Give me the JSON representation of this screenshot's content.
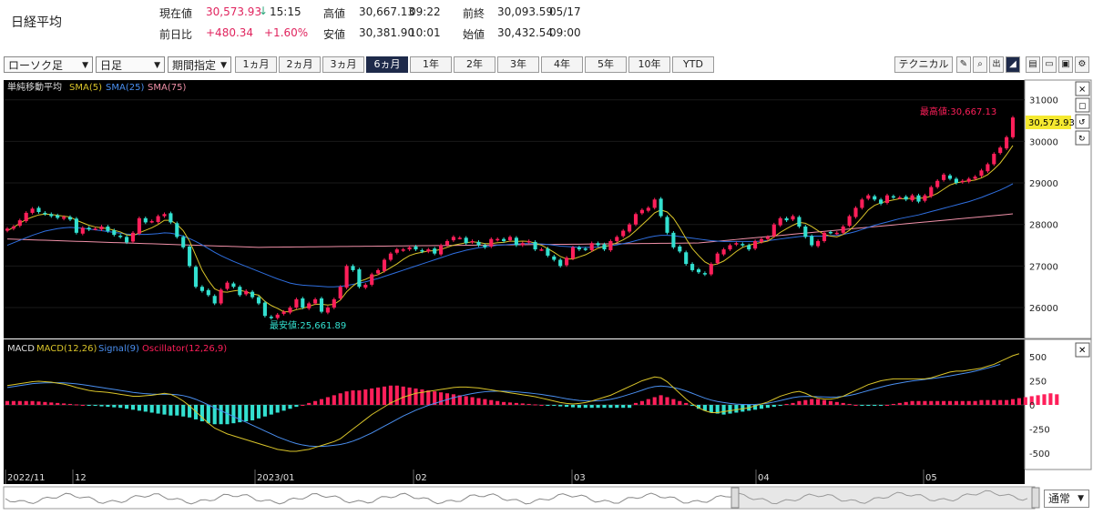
{
  "quote": {
    "name": "日経平均",
    "current_label": "現在値",
    "current_value": "30,573.93",
    "current_arrow": "↓",
    "current_time": "15:15",
    "high_label": "高値",
    "high_value": "30,667.13",
    "high_time": "09:22",
    "prevclose_label": "前終",
    "prevclose_value": "30,093.59",
    "prevclose_date": "05/17",
    "change_label": "前日比",
    "change_value": "+480.34",
    "change_pct": "+1.60%",
    "low_label": "安値",
    "low_value": "30,381.90",
    "low_time": "10:01",
    "open_label": "始値",
    "open_value": "30,432.54",
    "open_time": "09:00"
  },
  "toolbar": {
    "chart_type": "ローソク足",
    "interval": "日足",
    "period_mode": "期間指定",
    "ranges": [
      "1ヵ月",
      "2ヵ月",
      "3ヵ月",
      "6ヵ月",
      "1年",
      "2年",
      "3年",
      "4年",
      "5年",
      "10年",
      "YTD"
    ],
    "active_range": "6ヵ月",
    "technical_label": "テクニカル"
  },
  "colors": {
    "up": "#ff1f5a",
    "down": "#33e0d0",
    "sma5": "#d9c42a",
    "sma25": "#2f6fe0",
    "sma75": "#f090a8",
    "macd": "#d9c42a",
    "signal": "#4a8ff0",
    "osc_pos": "#ff1f5a",
    "osc_neg": "#33e0d0",
    "background": "#000000"
  },
  "chart_data": {
    "type": "candlestick",
    "x_ticks": [
      "2022/11",
      "12",
      "2023/01",
      "02",
      "03",
      "04",
      "05"
    ],
    "price_panel": {
      "legend": [
        "単純移動平均",
        "SMA(5)",
        "SMA(25)",
        "SMA(75)"
      ],
      "ylim": [
        25300,
        31300
      ],
      "y_ticks": [
        26000,
        27000,
        28000,
        29000,
        30000,
        31000
      ],
      "last_price_label": "30,573.93",
      "high_annotation": "最高値:30,667.13",
      "low_annotation": "最安値:25,661.89",
      "close": [
        27900,
        27950,
        28100,
        28280,
        28380,
        28300,
        28250,
        28200,
        28160,
        28180,
        28120,
        27800,
        27920,
        27880,
        27900,
        27950,
        27840,
        27750,
        27700,
        27570,
        27800,
        28150,
        28050,
        28080,
        28200,
        28250,
        28050,
        27700,
        27450,
        27000,
        26500,
        26400,
        26300,
        26100,
        26430,
        26600,
        26500,
        26300,
        26400,
        26250,
        26100,
        25800,
        25750,
        25830,
        25900,
        26000,
        26200,
        26000,
        26100,
        26200,
        25900,
        26000,
        26200,
        26500,
        27000,
        26900,
        26500,
        26550,
        26800,
        26900,
        27150,
        27300,
        27400,
        27400,
        27450,
        27400,
        27350,
        27400,
        27300,
        27500,
        27600,
        27700,
        27680,
        27550,
        27600,
        27500,
        27450,
        27650,
        27650,
        27600,
        27700,
        27500,
        27550,
        27600,
        27400,
        27400,
        27250,
        27150,
        27000,
        27200,
        27450,
        27400,
        27400,
        27550,
        27500,
        27400,
        27600,
        27700,
        27850,
        28000,
        28250,
        28350,
        28400,
        28600,
        28200,
        27800,
        27450,
        27350,
        27050,
        26900,
        26850,
        26800,
        27050,
        27300,
        27400,
        27500,
        27550,
        27500,
        27400,
        27600,
        27650,
        27700,
        28000,
        28150,
        28100,
        28200,
        27950,
        27700,
        27500,
        27600,
        27800,
        27800,
        27800,
        27950,
        28200,
        28400,
        28600,
        28700,
        28600,
        28500,
        28700,
        28650,
        28650,
        28600,
        28700,
        28550,
        28700,
        28900,
        29050,
        29200,
        29100,
        29000,
        29050,
        29100,
        29150,
        29300,
        29450,
        29700,
        29850,
        30100,
        30574
      ],
      "sma5": [
        27850,
        27930,
        28030,
        28120,
        28180,
        28230,
        28250,
        28240,
        28220,
        28200,
        28180,
        28100,
        28040,
        27980,
        27940,
        27920,
        27900,
        27860,
        27820,
        27750,
        27730,
        27800,
        27860,
        27920,
        28000,
        28100,
        28100,
        28000,
        27850,
        27600,
        27250,
        26900,
        26650,
        26450,
        26380,
        26370,
        26400,
        26420,
        26380,
        26330,
        26300,
        26150,
        26050,
        25980,
        25900,
        25900,
        25950,
        25980,
        26030,
        26080,
        26080,
        26060,
        26080,
        26180,
        26380,
        26520,
        26630,
        26680,
        26750,
        26790,
        26870,
        26960,
        27050,
        27160,
        27250,
        27300,
        27330,
        27360,
        27370,
        27400,
        27450,
        27500,
        27530,
        27560,
        27580,
        27570,
        27540,
        27540,
        27560,
        27570,
        27600,
        27590,
        27600,
        27590,
        27550,
        27500,
        27420,
        27330,
        27230,
        27170,
        27170,
        27220,
        27270,
        27350,
        27430,
        27470,
        27500,
        27560,
        27630,
        27720,
        27850,
        27990,
        28130,
        28280,
        28350,
        28300,
        28150,
        27920,
        27660,
        27420,
        27250,
        27100,
        27020,
        27050,
        27120,
        27230,
        27350,
        27450,
        27500,
        27540,
        27570,
        27600,
        27700,
        27810,
        27900,
        27980,
        28050,
        28030,
        27950,
        27850,
        27760,
        27720,
        27700,
        27760,
        27860,
        28000,
        28170,
        28350,
        28460,
        28520,
        28560,
        28590,
        28620,
        28620,
        28630,
        28630,
        28640,
        28680,
        28750,
        28850,
        28950,
        29000,
        29030,
        29050,
        29070,
        29120,
        29200,
        29330,
        29480,
        29680,
        29900
      ],
      "sma25": [
        27500,
        27560,
        27620,
        27680,
        27740,
        27790,
        27840,
        27870,
        27900,
        27920,
        27930,
        27920,
        27910,
        27890,
        27870,
        27850,
        27830,
        27810,
        27790,
        27770,
        27760,
        27760,
        27760,
        27770,
        27780,
        27800,
        27790,
        27760,
        27720,
        27660,
        27590,
        27510,
        27420,
        27330,
        27250,
        27180,
        27110,
        27050,
        26990,
        26930,
        26870,
        26810,
        26750,
        26690,
        26640,
        26590,
        26560,
        26540,
        26530,
        26520,
        26510,
        26500,
        26500,
        26510,
        26530,
        26560,
        26590,
        26620,
        26660,
        26700,
        26750,
        26800,
        26850,
        26900,
        26950,
        27000,
        27050,
        27100,
        27150,
        27200,
        27250,
        27300,
        27340,
        27380,
        27410,
        27440,
        27460,
        27480,
        27500,
        27510,
        27520,
        27530,
        27540,
        27540,
        27540,
        27530,
        27520,
        27500,
        27480,
        27470,
        27460,
        27450,
        27450,
        27450,
        27460,
        27470,
        27490,
        27510,
        27540,
        27570,
        27610,
        27650,
        27690,
        27720,
        27740,
        27740,
        27730,
        27710,
        27690,
        27670,
        27650,
        27630,
        27610,
        27600,
        27590,
        27590,
        27590,
        27590,
        27590,
        27590,
        27600,
        27610,
        27630,
        27650,
        27670,
        27690,
        27710,
        27720,
        27720,
        27720,
        27720,
        27730,
        27740,
        27760,
        27790,
        27830,
        27880,
        27930,
        27980,
        28020,
        28060,
        28100,
        28140,
        28170,
        28200,
        28230,
        28270,
        28310,
        28350,
        28390,
        28430,
        28470,
        28510,
        28550,
        28600,
        28650,
        28710,
        28770,
        28830,
        28900,
        28980
      ]
    },
    "macd_panel": {
      "legend": [
        "MACD",
        "MACD(12,26)",
        "Signal(9)",
        "Oscillator(12,26,9)"
      ],
      "ylim": [
        -650,
        650
      ],
      "y_ticks": [
        500,
        250,
        0,
        -250,
        -500
      ],
      "macd": [
        200,
        210,
        220,
        230,
        240,
        245,
        240,
        235,
        225,
        215,
        200,
        180,
        165,
        150,
        140,
        135,
        130,
        120,
        110,
        100,
        90,
        90,
        95,
        100,
        110,
        120,
        110,
        80,
        40,
        -10,
        -70,
        -130,
        -190,
        -240,
        -270,
        -300,
        -320,
        -340,
        -360,
        -380,
        -400,
        -420,
        -440,
        -460,
        -470,
        -480,
        -480,
        -470,
        -460,
        -440,
        -420,
        -400,
        -380,
        -350,
        -300,
        -250,
        -200,
        -150,
        -100,
        -60,
        -20,
        20,
        50,
        80,
        100,
        120,
        130,
        140,
        150,
        160,
        170,
        180,
        185,
        185,
        180,
        175,
        165,
        155,
        145,
        135,
        125,
        115,
        105,
        95,
        85,
        70,
        55,
        40,
        25,
        15,
        10,
        15,
        25,
        40,
        60,
        80,
        100,
        130,
        160,
        190,
        220,
        250,
        270,
        290,
        280,
        240,
        180,
        120,
        60,
        10,
        -30,
        -60,
        -80,
        -80,
        -70,
        -60,
        -50,
        -40,
        -30,
        -10,
        10,
        30,
        60,
        90,
        110,
        130,
        140,
        120,
        90,
        70,
        60,
        60,
        70,
        90,
        120,
        150,
        180,
        210,
        230,
        250,
        260,
        270,
        270,
        270,
        270,
        270,
        270,
        280,
        300,
        320,
        340,
        350,
        350,
        360,
        370,
        380,
        400,
        420,
        450,
        480,
        510,
        530
      ],
      "signal": [
        180,
        190,
        200,
        210,
        220,
        225,
        228,
        230,
        230,
        228,
        224,
        218,
        210,
        200,
        190,
        180,
        170,
        160,
        150,
        140,
        130,
        122,
        116,
        112,
        110,
        110,
        110,
        106,
        96,
        80,
        58,
        30,
        0,
        -30,
        -60,
        -90,
        -120,
        -150,
        -180,
        -210,
        -240,
        -270,
        -300,
        -330,
        -355,
        -380,
        -400,
        -415,
        -425,
        -430,
        -430,
        -425,
        -418,
        -410,
        -395,
        -375,
        -350,
        -320,
        -290,
        -255,
        -220,
        -185,
        -150,
        -115,
        -85,
        -55,
        -30,
        -5,
        15,
        35,
        55,
        75,
        90,
        105,
        118,
        128,
        136,
        140,
        142,
        142,
        140,
        136,
        130,
        124,
        116,
        108,
        98,
        88,
        76,
        64,
        54,
        46,
        42,
        40,
        42,
        48,
        58,
        72,
        90,
        110,
        130,
        152,
        175,
        190,
        195,
        190,
        180,
        165,
        145,
        120,
        95,
        70,
        50,
        35,
        25,
        15,
        8,
        5,
        3,
        5,
        10,
        18,
        30,
        45,
        60,
        75,
        85,
        88,
        87,
        85,
        82,
        80,
        82,
        88,
        98,
        112,
        130,
        148,
        166,
        184,
        200,
        214,
        226,
        238,
        248,
        256,
        264,
        272,
        280,
        290,
        300,
        312,
        324,
        336,
        350,
        366,
        382,
        400,
        420
      ],
      "oscillator": [
        40,
        40,
        40,
        40,
        40,
        35,
        30,
        25,
        20,
        15,
        10,
        5,
        0,
        -5,
        -10,
        -15,
        -20,
        -25,
        -30,
        -40,
        -50,
        -60,
        -70,
        -80,
        -90,
        -100,
        -110,
        -110,
        -120,
        -130,
        -150,
        -170,
        -190,
        -200,
        -200,
        -200,
        -190,
        -180,
        -170,
        -160,
        -140,
        -120,
        -100,
        -80,
        -60,
        -40,
        -20,
        0,
        20,
        40,
        60,
        80,
        100,
        120,
        140,
        150,
        150,
        160,
        170,
        180,
        190,
        200,
        200,
        190,
        180,
        170,
        160,
        150,
        140,
        130,
        120,
        110,
        100,
        90,
        80,
        70,
        60,
        50,
        40,
        30,
        25,
        20,
        15,
        10,
        5,
        0,
        -5,
        -10,
        -15,
        -20,
        -25,
        -30,
        -30,
        -30,
        -30,
        -30,
        -30,
        -30,
        -30,
        -30,
        20,
        40,
        60,
        80,
        100,
        80,
        60,
        40,
        20,
        -10,
        -40,
        -60,
        -80,
        -90,
        -100,
        -90,
        -80,
        -70,
        -60,
        -50,
        -40,
        -30,
        -20,
        -10,
        10,
        20,
        40,
        50,
        60,
        60,
        50,
        40,
        30,
        20,
        10,
        0,
        -10,
        -10,
        -10,
        -10,
        0,
        10,
        20,
        30,
        40,
        40,
        40,
        40,
        40,
        40,
        40,
        40,
        40,
        40,
        40,
        50,
        50,
        50,
        50,
        50,
        60,
        70,
        80,
        90,
        100,
        110,
        120,
        110
      ]
    }
  },
  "bottom": {
    "mode_label": "通常"
  }
}
